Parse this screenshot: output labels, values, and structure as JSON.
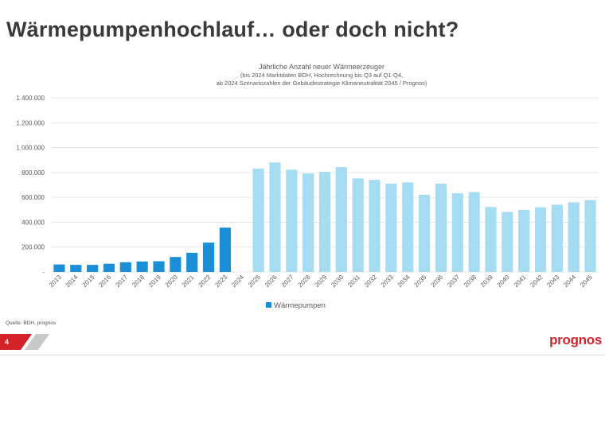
{
  "slide": {
    "title": "Wärmepumpenhochlauf… oder doch nicht?",
    "source": "Quelle: BDH, prognos",
    "page_number": "4",
    "logo_text": "prognos"
  },
  "colors": {
    "historical_bar": "#1a8fd8",
    "scenario_bar": "#a5dcf2",
    "logo": "#d3222a",
    "footer_red": "#d3222a",
    "footer_grey": "#c8c8c8"
  },
  "chart_data": {
    "type": "bar",
    "title_lines": [
      "Jährliche Anzahl neuer Wärmeerzeuger",
      "(bis 2024 Marktdaten BDH, Hochrechnung bis Q3 auf Q1-Q4,",
      "ab 2024 Szenariozahlen der Gebäudestrategie Klimaneutralität 2045 / Prognos)"
    ],
    "categories": [
      "2013",
      "2014",
      "2015",
      "2016",
      "2017",
      "2018",
      "2019",
      "2020",
      "2021",
      "2022",
      "2023",
      "2024",
      "2025",
      "2026",
      "2027",
      "2028",
      "2029",
      "2030",
      "2031",
      "2032",
      "2033",
      "2034",
      "2035",
      "2036",
      "2037",
      "2038",
      "2039",
      "2040",
      "2041",
      "2042",
      "2043",
      "2044",
      "2045"
    ],
    "series": [
      {
        "name": "Wärmepumpen",
        "values": [
          60000,
          57000,
          57000,
          66000,
          78000,
          84000,
          86000,
          120000,
          154000,
          236000,
          356000,
          null,
          830000,
          880000,
          822000,
          792000,
          806000,
          843000,
          752000,
          740000,
          710000,
          720000,
          620000,
          710000,
          632000,
          642000,
          522000,
          482000,
          500000,
          520000,
          540000,
          560000,
          578000
        ]
      }
    ],
    "historical_until": "2024",
    "ylim": [
      0,
      1400000
    ],
    "yticks": [
      0,
      200000,
      400000,
      600000,
      800000,
      1000000,
      1200000,
      1400000
    ],
    "ytick_labels": [
      "-",
      "200.000",
      "400.000",
      "600.000",
      "800.000",
      "1.000.000",
      "1.200.000",
      "1.400.000"
    ],
    "grid": true,
    "legend_position": "bottom-center"
  }
}
